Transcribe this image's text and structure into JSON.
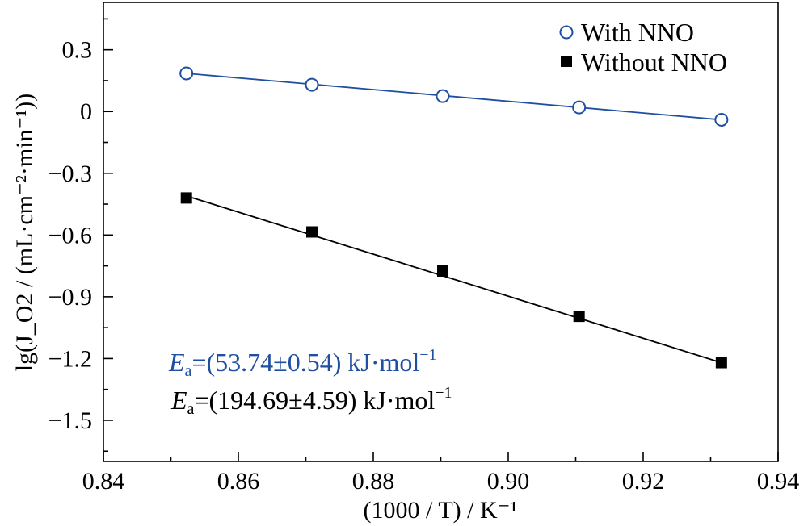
{
  "chart_data": {
    "type": "scatter",
    "xlabel": "(1000 / T) / K⁻¹",
    "ylabel": "lg(J_O2 / (mL·cm⁻²·min⁻¹))",
    "xlim": [
      0.84,
      0.94
    ],
    "ylim": [
      -1.7,
      0.53
    ],
    "x_ticks": [
      0.84,
      0.86,
      0.88,
      0.9,
      0.92,
      0.94
    ],
    "x_tick_labels": [
      "0.84",
      "0.86",
      "0.88",
      "0.90",
      "0.92",
      "0.94"
    ],
    "y_ticks": [
      0.3,
      0,
      -0.3,
      -0.6,
      -0.9,
      -1.2,
      -1.5
    ],
    "y_tick_labels": [
      "0.3",
      "0",
      "−0.3",
      "−0.6",
      "−0.9",
      "−1.2",
      "−1.5"
    ],
    "grid": false,
    "legend_position": "top-right",
    "series": [
      {
        "name": "With NNO",
        "marker": "open-circle",
        "color": "#1f4fa0",
        "x": [
          0.8523,
          0.8709,
          0.8903,
          0.9105,
          0.9316
        ],
        "y": [
          0.185,
          0.13,
          0.075,
          0.02,
          -0.04
        ],
        "fit": {
          "x": [
            0.8523,
            0.9316
          ],
          "y": [
            0.185,
            -0.04
          ]
        }
      },
      {
        "name": "Without NNO",
        "marker": "filled-square",
        "color": "#000000",
        "x": [
          0.8523,
          0.8709,
          0.8903,
          0.9105,
          0.9316
        ],
        "y": [
          -0.42,
          -0.585,
          -0.775,
          -0.995,
          -1.22
        ],
        "fit": {
          "x": [
            0.8523,
            0.9316
          ],
          "y": [
            -0.41,
            -1.22
          ]
        }
      }
    ],
    "annotations": [
      {
        "italic": "E",
        "sub": "a",
        "text": "=(53.74±0.54) kJ·mol",
        "sup": "−1",
        "color": "#1f4fa0"
      },
      {
        "italic": "E",
        "sub": "a",
        "text": "=(194.69±4.59) kJ·mol",
        "sup": "−1",
        "color": "#000000"
      }
    ]
  }
}
